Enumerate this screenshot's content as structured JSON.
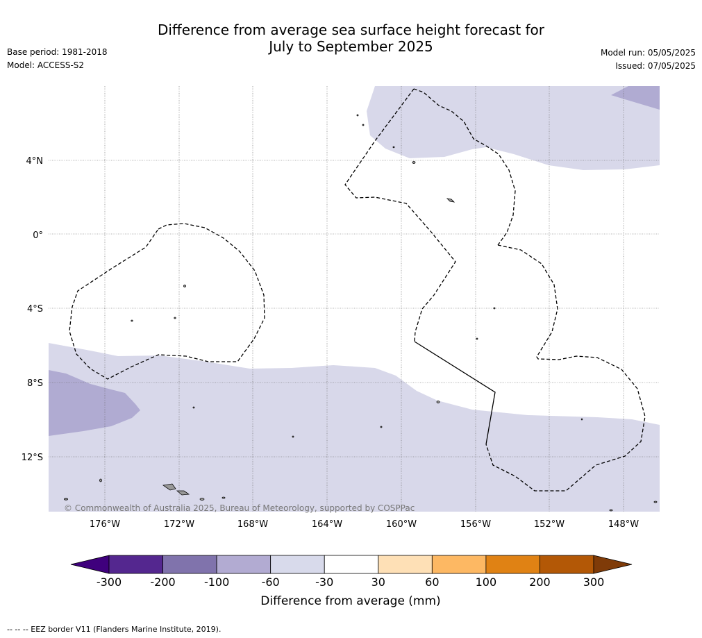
{
  "header": {
    "title_line1": "Difference from average sea surface height forecast for",
    "title_line2": "July to September 2025",
    "base_period": "Base period: 1981-2018",
    "model": "Model: ACCESS-S2",
    "model_run": "Model run: 05/05/2025",
    "issued": "Issued: 07/05/2025"
  },
  "map": {
    "lat_labels": [
      "4°N",
      "0°",
      "4°S",
      "8°S",
      "12°S"
    ],
    "lon_labels": [
      "176°W",
      "172°W",
      "168°W",
      "164°W",
      "160°W",
      "156°W",
      "152°W",
      "148°W"
    ],
    "copyright": "© Commonwealth of Australia 2025, Bureau of Meteorology, supported by COSPPac",
    "colors": {
      "light_lavender": "#d8d8ea",
      "mid_lavender": "#b0abd2",
      "land": "#999999",
      "border": "#000000"
    }
  },
  "colorbar": {
    "ticks": [
      "-300",
      "-200",
      "-100",
      "-60",
      "-30",
      "30",
      "60",
      "100",
      "200",
      "300"
    ],
    "colors": [
      "#3f007d",
      "#54278f",
      "#8073ac",
      "#b2abd2",
      "#d8daeb",
      "#ffffff",
      "#fee0b6",
      "#fdb863",
      "#e08214",
      "#b35806",
      "#7f3b08"
    ],
    "title": "Difference from average (mm)"
  },
  "footer": {
    "legend_text": "--  --  -- EEZ border V11 (Flanders Marine Institute, 2019)."
  }
}
